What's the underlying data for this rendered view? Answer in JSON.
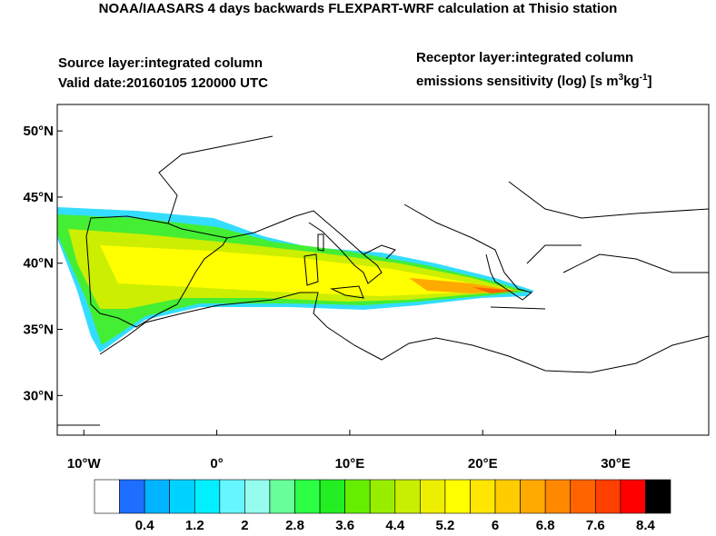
{
  "header": {
    "title": "NOAA/IAASARS 4 days backwards FLEXPART-WRF calculation at Thisio station",
    "source_layer": "Source layer:integrated column",
    "valid_date": "Valid date:20160105 120000 UTC",
    "receptor_layer": "Receptor layer:integrated column",
    "units": {
      "prefix": "emissions sensitivity (log) [s m",
      "sup1": "3",
      "mid": "kg",
      "sup2": "-1",
      "suffix": "]"
    }
  },
  "map": {
    "xlim": [
      -12,
      37
    ],
    "ylim": [
      27,
      52
    ],
    "xticks": [
      {
        "value": -10,
        "label": "10°W"
      },
      {
        "value": 0,
        "label": "0°"
      },
      {
        "value": 10,
        "label": "10°E"
      },
      {
        "value": 20,
        "label": "20°E"
      },
      {
        "value": 30,
        "label": "30°E"
      }
    ],
    "yticks": [
      {
        "value": 50,
        "label": "50°N"
      },
      {
        "value": 45,
        "label": "45°N"
      },
      {
        "value": 40,
        "label": "40°N"
      },
      {
        "value": 35,
        "label": "35°N"
      },
      {
        "value": 30,
        "label": "30°N"
      }
    ]
  },
  "colorbar": {
    "lim": [
      -0.4,
      8.8
    ],
    "colors": [
      "#ffffff",
      "#1e6eff",
      "#00b4ff",
      "#00d2ff",
      "#00f0ff",
      "#66f6ff",
      "#96fcf0",
      "#66ff99",
      "#2cff44",
      "#22ee22",
      "#66ee00",
      "#99ee00",
      "#c8ee00",
      "#eeee00",
      "#ffff00",
      "#ffe600",
      "#ffcc00",
      "#ffaa00",
      "#ff8800",
      "#ff6400",
      "#ff4000",
      "#ff0000",
      "#000000"
    ],
    "ticks": [
      0.4,
      1.2,
      2,
      2.8,
      3.6,
      4.4,
      5.2,
      6,
      6.8,
      7.6,
      8.4
    ]
  }
}
